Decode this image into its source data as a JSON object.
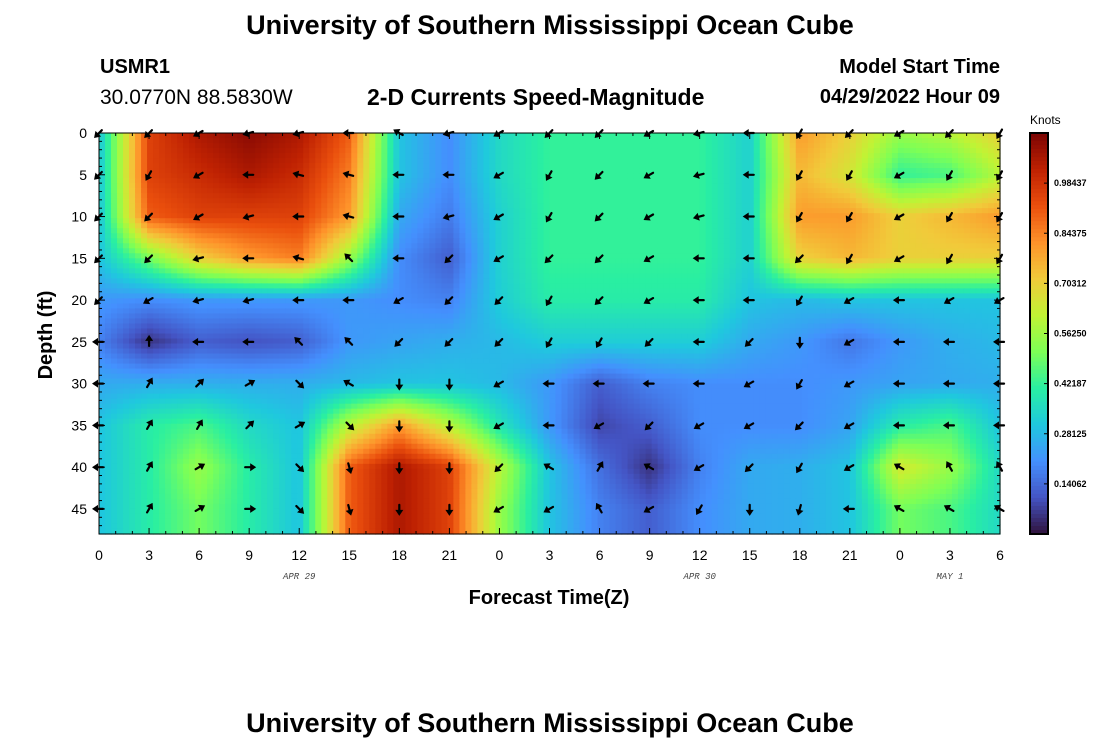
{
  "page": {
    "title_top": "University of Southern Mississippi Ocean Cube",
    "title_bottom": "University of Southern Mississippi Ocean Cube",
    "station_id": "USMR1",
    "station_coords": "30.0770N  88.5830W",
    "chart_title": "2-D Currents Speed-Magnitude",
    "model_start_label": "Model Start Time",
    "model_start_time": "04/29/2022 Hour 09"
  },
  "colors": {
    "arrow": "#000000",
    "frame": "#000000",
    "colormap": [
      "#30123b",
      "#4454c4",
      "#4490fe",
      "#1fc8de",
      "#29efa2",
      "#7dff56",
      "#c1f334",
      "#f1ca3a",
      "#fe922a",
      "#ea4f0d",
      "#be2102",
      "#7a0403"
    ]
  },
  "chart_data": {
    "type": "heatmap",
    "title": "2-D Currents Speed-Magnitude",
    "xlabel": "Forecast Time(Z)",
    "ylabel": "Depth (ft)",
    "x_tick_labels": [
      "0",
      "3",
      "6",
      "9",
      "12",
      "15",
      "18",
      "21",
      "0",
      "3",
      "6",
      "9",
      "12",
      "15",
      "18",
      "21",
      "0",
      "3",
      "6"
    ],
    "date_labels": [
      {
        "text": "APR 29",
        "hour_index": 12
      },
      {
        "text": "APR 30",
        "hour_index": 36
      },
      {
        "text": "MAY 1",
        "hour_index": 51
      }
    ],
    "xlim": [
      0,
      54
    ],
    "y_ticks": [
      0,
      5,
      10,
      15,
      20,
      25,
      30,
      35,
      40,
      45
    ],
    "ylim": [
      0,
      48
    ],
    "colorbar": {
      "title": "Knots",
      "range": [
        0,
        1.125
      ],
      "tick_labels": [
        "0.98437",
        "0.84375",
        "0.70312",
        "0.56250",
        "0.42187",
        "0.28125",
        "0.14062"
      ],
      "tick_values": [
        0.98437,
        0.84375,
        0.70312,
        0.5625,
        0.42187,
        0.28125,
        0.14062
      ]
    },
    "speed_hours": [
      0,
      3,
      6,
      9,
      12,
      15,
      18,
      21,
      24,
      27,
      30,
      33,
      36,
      39,
      42,
      45,
      48,
      51,
      54
    ],
    "speed_depths": [
      0,
      5,
      10,
      15,
      20,
      25,
      30,
      35,
      40,
      45
    ],
    "speed_grid": [
      [
        0.3,
        0.95,
        1.05,
        1.1,
        1.05,
        0.9,
        0.3,
        0.2,
        0.35,
        0.42,
        0.42,
        0.42,
        0.42,
        0.33,
        0.8,
        0.7,
        0.55,
        0.6,
        0.7
      ],
      [
        0.3,
        0.95,
        1.0,
        1.05,
        1.0,
        0.85,
        0.3,
        0.2,
        0.35,
        0.42,
        0.42,
        0.42,
        0.42,
        0.33,
        0.75,
        0.65,
        0.42,
        0.45,
        0.6
      ],
      [
        0.3,
        0.9,
        0.95,
        0.95,
        0.95,
        0.8,
        0.25,
        0.17,
        0.33,
        0.42,
        0.42,
        0.42,
        0.42,
        0.33,
        0.8,
        0.8,
        0.7,
        0.75,
        0.8
      ],
      [
        0.3,
        0.5,
        0.7,
        0.8,
        0.85,
        0.55,
        0.2,
        0.12,
        0.33,
        0.42,
        0.42,
        0.42,
        0.42,
        0.33,
        0.7,
        0.75,
        0.7,
        0.7,
        0.7
      ],
      [
        0.22,
        0.2,
        0.22,
        0.22,
        0.22,
        0.22,
        0.2,
        0.18,
        0.32,
        0.4,
        0.4,
        0.4,
        0.4,
        0.3,
        0.28,
        0.3,
        0.3,
        0.3,
        0.3
      ],
      [
        0.18,
        0.05,
        0.12,
        0.1,
        0.12,
        0.22,
        0.24,
        0.26,
        0.28,
        0.32,
        0.32,
        0.32,
        0.32,
        0.25,
        0.22,
        0.16,
        0.22,
        0.26,
        0.28
      ],
      [
        0.25,
        0.26,
        0.26,
        0.26,
        0.26,
        0.28,
        0.3,
        0.3,
        0.28,
        0.22,
        0.12,
        0.18,
        0.2,
        0.2,
        0.2,
        0.22,
        0.24,
        0.25,
        0.26
      ],
      [
        0.3,
        0.4,
        0.45,
        0.35,
        0.3,
        0.6,
        0.8,
        0.6,
        0.38,
        0.22,
        0.08,
        0.12,
        0.2,
        0.2,
        0.2,
        0.24,
        0.4,
        0.45,
        0.3
      ],
      [
        0.3,
        0.4,
        0.55,
        0.4,
        0.3,
        0.9,
        1.05,
        0.95,
        0.6,
        0.3,
        0.15,
        0.05,
        0.18,
        0.25,
        0.26,
        0.3,
        0.65,
        0.55,
        0.35
      ],
      [
        0.3,
        0.4,
        0.5,
        0.4,
        0.3,
        0.9,
        1.05,
        0.95,
        0.55,
        0.3,
        0.18,
        0.12,
        0.2,
        0.25,
        0.26,
        0.3,
        0.5,
        0.45,
        0.35
      ]
    ],
    "arrow_hours": [
      0,
      3,
      6,
      9,
      12,
      15,
      18,
      21,
      24,
      27,
      30,
      33,
      36,
      39,
      42,
      45,
      48,
      51,
      54
    ],
    "arrow_depths": [
      0,
      5,
      10,
      15,
      20,
      25,
      30,
      35,
      40,
      45
    ],
    "arrow_directions_deg": [
      [
        225,
        225,
        240,
        255,
        255,
        270,
        300,
        255,
        240,
        225,
        225,
        240,
        255,
        270,
        210,
        225,
        240,
        225,
        210
      ],
      [
        225,
        210,
        240,
        270,
        285,
        285,
        270,
        270,
        240,
        210,
        225,
        240,
        255,
        270,
        210,
        210,
        240,
        210,
        210
      ],
      [
        225,
        225,
        240,
        255,
        270,
        285,
        270,
        255,
        240,
        210,
        225,
        240,
        255,
        270,
        210,
        210,
        240,
        210,
        210
      ],
      [
        225,
        225,
        255,
        270,
        285,
        315,
        270,
        225,
        240,
        225,
        225,
        240,
        270,
        270,
        225,
        210,
        240,
        210,
        210
      ],
      [
        225,
        240,
        255,
        255,
        270,
        270,
        240,
        225,
        225,
        210,
        225,
        240,
        270,
        270,
        210,
        240,
        270,
        240,
        240
      ],
      [
        270,
        0,
        270,
        270,
        315,
        315,
        225,
        225,
        225,
        210,
        210,
        225,
        270,
        225,
        180,
        240,
        270,
        270,
        270
      ],
      [
        270,
        30,
        45,
        60,
        135,
        300,
        180,
        180,
        240,
        270,
        270,
        270,
        270,
        240,
        210,
        240,
        270,
        270,
        270
      ],
      [
        270,
        30,
        30,
        45,
        60,
        135,
        180,
        180,
        240,
        270,
        240,
        225,
        240,
        240,
        225,
        240,
        270,
        270,
        270
      ],
      [
        270,
        30,
        60,
        90,
        135,
        165,
        180,
        180,
        225,
        300,
        30,
        300,
        240,
        225,
        210,
        240,
        300,
        330,
        330
      ],
      [
        270,
        30,
        60,
        90,
        135,
        165,
        180,
        180,
        240,
        240,
        330,
        240,
        210,
        180,
        195,
        270,
        300,
        300,
        300
      ]
    ]
  }
}
